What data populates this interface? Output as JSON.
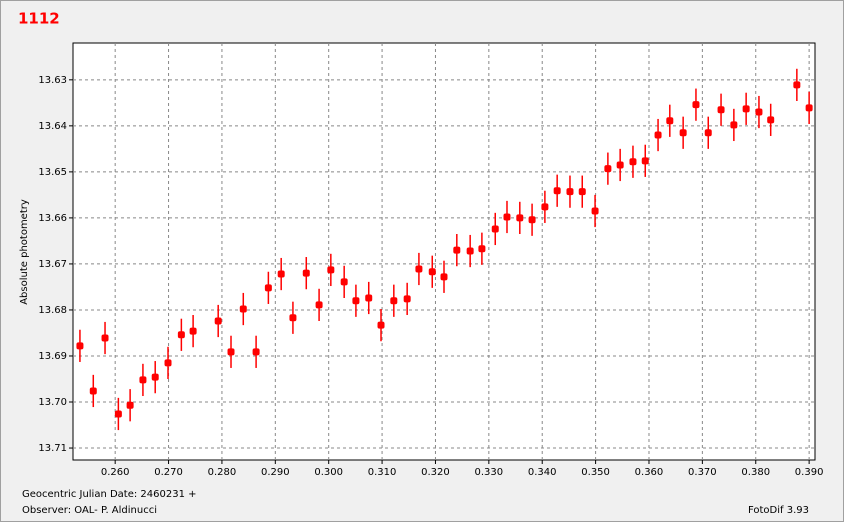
{
  "chart_data": {
    "type": "scatter",
    "title": "1112",
    "y_label": "Absolute photometry",
    "x_caption": "Geocentric Julian Date: 2460231 +",
    "observer": "Observer: OAL- P. Aldinucci",
    "software": "FotoDif 3.93",
    "color": "#ff0000",
    "grid": true,
    "xlim": [
      0.2521,
      0.3911
    ],
    "ylim": [
      13.7126,
      13.622
    ],
    "xticks": [
      {
        "value": 0.26,
        "label": "0.260"
      },
      {
        "value": 0.27,
        "label": "0.270"
      },
      {
        "value": 0.28,
        "label": "0.280"
      },
      {
        "value": 0.29,
        "label": "0.290"
      },
      {
        "value": 0.3,
        "label": "0.300"
      },
      {
        "value": 0.31,
        "label": "0.310"
      },
      {
        "value": 0.32,
        "label": "0.320"
      },
      {
        "value": 0.33,
        "label": "0.330"
      },
      {
        "value": 0.34,
        "label": "0.340"
      },
      {
        "value": 0.35,
        "label": "0.350"
      },
      {
        "value": 0.36,
        "label": "0.360"
      },
      {
        "value": 0.37,
        "label": "0.370"
      },
      {
        "value": 0.38,
        "label": "0.380"
      },
      {
        "value": 0.39,
        "label": "0.390"
      }
    ],
    "yticks": [
      13.63,
      13.64,
      13.65,
      13.66,
      13.67,
      13.68,
      13.69,
      {
        "value": 13.7,
        "label": "13.70"
      },
      13.71
    ],
    "x": [
      0.2534,
      0.2559,
      0.2581,
      0.2606,
      0.2628,
      0.2652,
      0.2675,
      0.2699,
      0.2724,
      0.2746,
      0.2793,
      0.2817,
      0.284,
      0.2864,
      0.2887,
      0.2911,
      0.2933,
      0.2958,
      0.2982,
      0.3004,
      0.3029,
      0.3051,
      0.3075,
      0.3098,
      0.3122,
      0.3147,
      0.3169,
      0.3194,
      0.3216,
      0.324,
      0.3265,
      0.3287,
      0.3312,
      0.3334,
      0.3358,
      0.3381,
      0.3405,
      0.3428,
      0.3452,
      0.3475,
      0.3499,
      0.3523,
      0.3546,
      0.357,
      0.3593,
      0.3617,
      0.3639,
      0.3664,
      0.3688,
      0.3711,
      0.3735,
      0.3759,
      0.3782,
      0.3806,
      0.3828,
      0.3877,
      0.39
    ],
    "values": [
      13.6878,
      13.6976,
      13.6861,
      13.7026,
      13.7007,
      13.6952,
      13.6946,
      13.6915,
      13.6854,
      13.6846,
      13.6824,
      13.6891,
      13.6798,
      13.6891,
      13.6752,
      13.6722,
      13.6817,
      13.672,
      13.6789,
      13.6713,
      13.6739,
      13.678,
      13.6774,
      13.6833,
      13.678,
      13.6776,
      13.6711,
      13.6717,
      13.6728,
      13.667,
      13.6672,
      13.6667,
      13.6624,
      13.6598,
      13.66,
      13.6604,
      13.6576,
      13.6541,
      13.6543,
      13.6543,
      13.6585,
      13.6493,
      13.6485,
      13.6478,
      13.6476,
      13.642,
      13.6389,
      13.6415,
      13.6354,
      13.6415,
      13.6365,
      13.6398,
      13.6363,
      13.637,
      13.6387,
      13.6311,
      13.6361
    ],
    "errors": [
      0.0035,
      0.0035,
      0.0035,
      0.0035,
      0.0035,
      0.0035,
      0.0035,
      0.0035,
      0.0035,
      0.0035,
      0.0035,
      0.0035,
      0.0035,
      0.0035,
      0.0035,
      0.0035,
      0.0035,
      0.0035,
      0.0035,
      0.0035,
      0.0035,
      0.0035,
      0.0035,
      0.0035,
      0.0035,
      0.0035,
      0.0035,
      0.0035,
      0.0035,
      0.0035,
      0.0035,
      0.0035,
      0.0035,
      0.0035,
      0.0035,
      0.0035,
      0.0035,
      0.0035,
      0.0035,
      0.0035,
      0.0035,
      0.0035,
      0.0035,
      0.0035,
      0.0035,
      0.0035,
      0.0035,
      0.0035,
      0.0035,
      0.0035,
      0.0035,
      0.0035,
      0.0035,
      0.0035,
      0.0035,
      0.0035,
      0.0035
    ]
  }
}
